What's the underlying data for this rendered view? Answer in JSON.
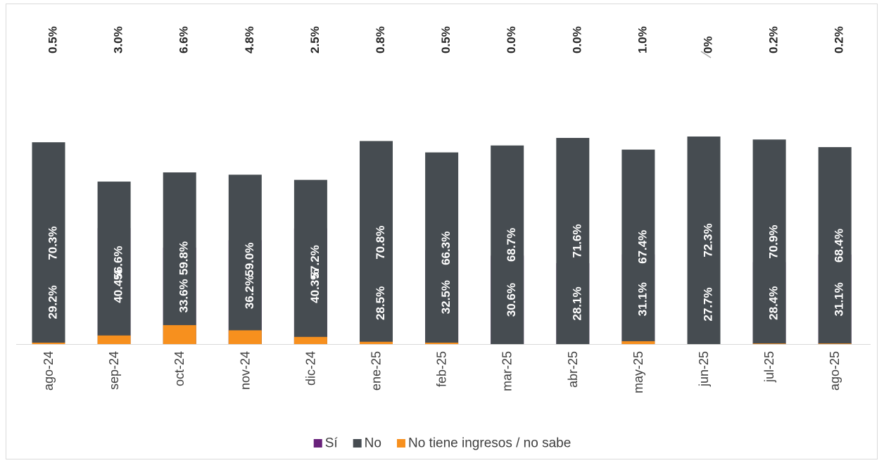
{
  "chart_data": {
    "type": "bar",
    "stacked": true,
    "normalized": true,
    "title": "",
    "xlabel": "",
    "ylabel": "",
    "ylim": [
      0,
      100
    ],
    "grid": false,
    "legend_position": "bottom",
    "categories": [
      "ago-24",
      "sep-24",
      "oct-24",
      "nov-24",
      "dic-24",
      "ene-25",
      "feb-25",
      "mar-25",
      "abr-25",
      "may-25",
      "jun-25",
      "jul-25",
      "ago-25"
    ],
    "series": [
      {
        "name": "Sí",
        "color": "#68217a",
        "values": [
          29.2,
          40.4,
          33.6,
          36.2,
          40.3,
          28.5,
          32.5,
          30.6,
          28.1,
          31.1,
          27.7,
          28.4,
          31.1
        ],
        "labels": [
          "29.2%",
          "40.4%",
          "33.6%",
          "36.2%",
          "40.3%",
          "28.5%",
          "32.5%",
          "30.6%",
          "28.1%",
          "31.1%",
          "27.7%",
          "28.4%",
          "31.1%"
        ]
      },
      {
        "name": "No",
        "color": "#464c51",
        "values": [
          70.3,
          56.6,
          59.8,
          59.0,
          57.2,
          70.8,
          66.3,
          68.7,
          71.6,
          67.4,
          72.3,
          70.9,
          68.4
        ],
        "labels": [
          "70.3%",
          "56.6%",
          "59.8%",
          "59.0%",
          "57.2%",
          "70.8%",
          "66.3%",
          "68.7%",
          "71.6%",
          "67.4%",
          "72.3%",
          "70.9%",
          "68.4%"
        ]
      },
      {
        "name": "No tiene ingresos / no sabe",
        "color": "#f7901e",
        "values": [
          0.5,
          3.0,
          6.6,
          4.8,
          2.5,
          0.8,
          0.5,
          0.0,
          0.0,
          1.0,
          0.0,
          0.2,
          0.2
        ],
        "labels": [
          "0.5%",
          "3.0%",
          "6.6%",
          "4.8%",
          "2.5%",
          "0.8%",
          "0.5%",
          "0.0%",
          "0.0%",
          "1.0%",
          "0%",
          "0.2%",
          "0.2%"
        ]
      }
    ]
  }
}
